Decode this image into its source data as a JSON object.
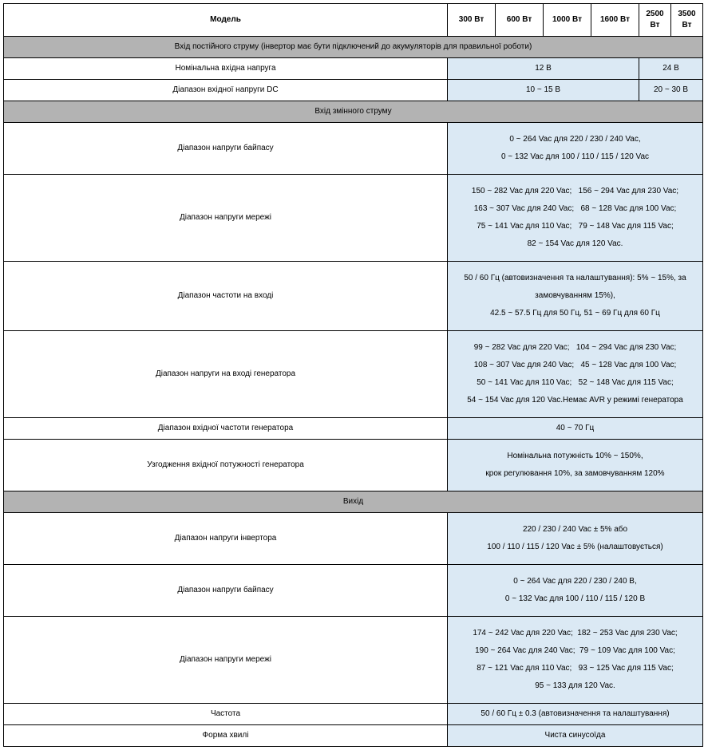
{
  "header": {
    "model": "Модель",
    "cols": [
      "300 Вт",
      "600 Вт",
      "1000 Вт",
      "1600 Вт",
      "2500 Вт",
      "3500 Вт"
    ]
  },
  "sec_dc": {
    "title": "Вхід постійного струму (інвертор має бути підключений до акумуляторів для правильної роботи)",
    "nom_label": "Номінальна вхідна напруга",
    "nom_v1": "12 В",
    "nom_v2": "24 В",
    "range_label": "Діапазон вхідної напруги DC",
    "range_v1": "10 ~ 15 В",
    "range_v2": "20 ~ 30 В"
  },
  "sec_ac_in": {
    "title": "Вхід змінного струму",
    "bypass_label": "Діапазон напруги байпасу",
    "bypass_l1": "0 ~ 264 Vac для 220 / 230 / 240 Vac,",
    "bypass_l2": "0 ~ 132 Vac для 100 / 110 / 115 / 120 Vac",
    "grid_label": "Діапазон напруги мережі",
    "grid_l1": "150 ~ 282 Vac для 220 Vac;   156 ~ 294 Vac для 230 Vac;",
    "grid_l2": "163 ~ 307 Vac для 240 Vac;   68 ~ 128 Vac для 100 Vac;",
    "grid_l3": "75 ~ 141 Vac для 110 Vac;   79 ~ 148 Vac для 115 Vac;",
    "grid_l4": "82 ~ 154 Vac для 120 Vac.",
    "freq_label": "Діапазон частоти на вході",
    "freq_l1": "50 / 60 Гц (автовизначення та налаштування): 5% ~ 15%, за замовчуванням 15%),",
    "freq_l2": "42.5 ~ 57.5 Гц для 50 Гц, 51 ~ 69 Гц для 60 Гц",
    "gen_v_label": "Діапазон напруги на вході генератора",
    "gen_v_l1": "99 ~ 282 Vac для 220 Vac;   104 ~ 294 Vac для 230 Vac;",
    "gen_v_l2": "108 ~ 307 Vac для 240 Vac;   45 ~ 128 Vac для 100 Vac;",
    "gen_v_l3": "50 ~ 141 Vac для 110 Vac;   52 ~ 148 Vac для 115 Vac;",
    "gen_v_l4": "54 ~ 154 Vac для 120 Vac.Немає AVR у режимі генератора",
    "gen_f_label": "Діапазон вхідної частоти генератора",
    "gen_f_val": "40 ~ 70 Гц",
    "gen_p_label": "Узгодження вхідної потужності генератора",
    "gen_p_l1": "Номінальна потужність 10% ~ 150%,",
    "gen_p_l2": "крок регулювання 10%, за замовчуванням 120%"
  },
  "sec_out": {
    "title": "Вихід",
    "inv_label": "Діапазон напруги інвертора",
    "inv_l1": "220 / 230 / 240 Vac ± 5% або",
    "inv_l2": "100 / 110 / 115 / 120 Vac ± 5% (налаштовується)",
    "bypass_label": "Діапазон напруги байпасу",
    "bypass_l1": "0 ~ 264 Vac для 220 / 230 / 240 В,",
    "bypass_l2": "0 ~ 132 Vac для 100 / 110 / 115 / 120 В",
    "grid_label": "Діапазон напруги мережі",
    "grid_l1": "174 ~ 242 Vac для 220 Vac;  182 ~ 253 Vac для 230 Vac;",
    "grid_l2": "190 ~ 264 Vac для 240 Vac;  79 ~ 109 Vac для 100 Vac;",
    "grid_l3": "87 ~ 121 Vac для 110 Vac;   93 ~ 125 Vac для 115 Vac;",
    "grid_l4": "95 ~ 133 для 120 Vac.",
    "freq_label": "Частота",
    "freq_val": "50 / 60 Гц ± 0.3 (автовизначення та налаштування)",
    "wave_label": "Форма хвилі",
    "wave_val": "Чиста синусоїда"
  }
}
